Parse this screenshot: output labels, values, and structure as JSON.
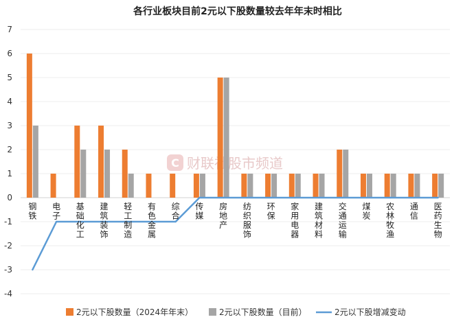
{
  "chart_data": {
    "type": "bar",
    "title": "各行业板块目前2元以下股数量较去年年末时相比",
    "categories": [
      "钢铁",
      "电子",
      "基础化工",
      "建筑装饰",
      "轻工制造",
      "有色金属",
      "综合",
      "传媒",
      "房地产",
      "纺织服饰",
      "环保",
      "家用电器",
      "建筑材料",
      "交通运输",
      "煤炭",
      "农林牧渔",
      "通信",
      "医药生物"
    ],
    "series": [
      {
        "name": "2元以下股数量（2024年年末）",
        "type": "bar",
        "color": "#ED7D31",
        "values": [
          6,
          1,
          3,
          3,
          2,
          1,
          1,
          1,
          5,
          1,
          1,
          1,
          1,
          2,
          1,
          1,
          1,
          1
        ]
      },
      {
        "name": "2元以下股数量（目前）",
        "type": "bar",
        "color": "#A5A5A5",
        "values": [
          3,
          0,
          2,
          2,
          1,
          0,
          0,
          1,
          5,
          1,
          1,
          1,
          1,
          2,
          1,
          1,
          1,
          1
        ]
      },
      {
        "name": "2元以下股增减变动",
        "type": "line",
        "color": "#5B9BD5",
        "values": [
          -3,
          -1,
          -1,
          -1,
          -1,
          -1,
          -1,
          0,
          0,
          0,
          0,
          0,
          0,
          0,
          0,
          0,
          0,
          0
        ]
      }
    ],
    "ylim": [
      -4,
      7
    ],
    "yticks": [
      -4,
      -3,
      -2,
      -1,
      0,
      1,
      2,
      3,
      4,
      5,
      6,
      7
    ],
    "grid": true,
    "legend_position": "bottom"
  },
  "watermark": {
    "text": "财联社股市频道"
  }
}
